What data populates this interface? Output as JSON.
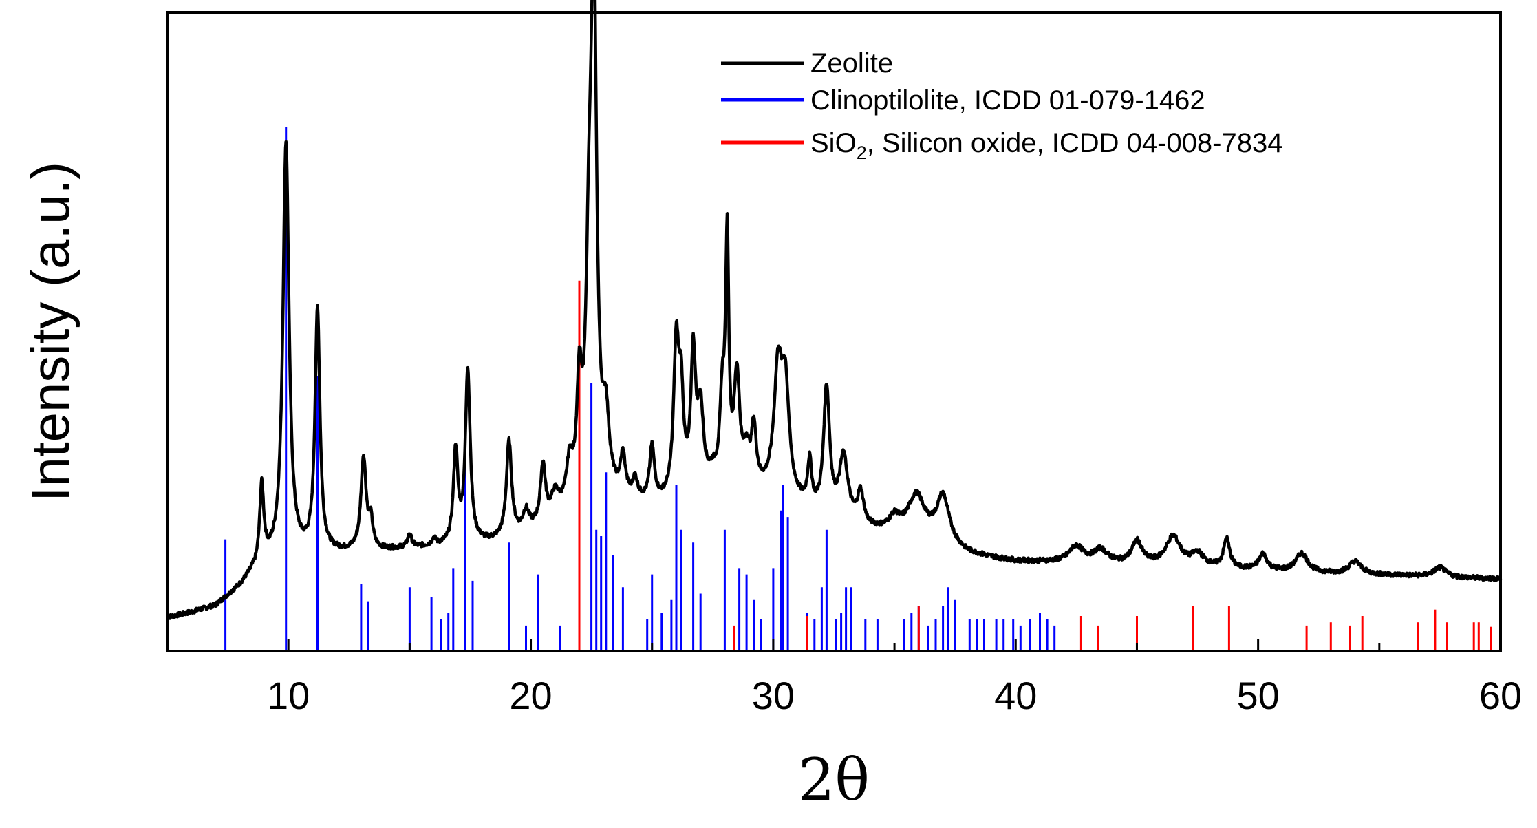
{
  "chart_data": {
    "type": "line",
    "title": "",
    "xlabel": "2θ",
    "ylabel": "Intensity (a.u.)",
    "xlim": [
      5,
      60
    ],
    "ylim": [
      0,
      100
    ],
    "xticks": [
      10,
      20,
      30,
      40,
      50,
      60
    ],
    "xtick_labels": [
      "10",
      "20",
      "30",
      "40",
      "50",
      "60"
    ],
    "legend_position": "top-right",
    "legend": [
      {
        "label": "Zeolite",
        "color": "#000000"
      },
      {
        "label": "Clinoptilolite, ICDD 01-079-1462",
        "color": "#0000ff"
      },
      {
        "label_main": "SiO",
        "label_sub": "2",
        "label_rest": ", Silicon oxide, ICDD 04-008-7834",
        "color": "#ff0000"
      }
    ],
    "series": [
      {
        "name": "Zeolite",
        "color": "#000000",
        "baseline": [
          [
            5,
            5.2
          ],
          [
            6,
            6.0
          ],
          [
            7,
            7.0
          ],
          [
            7.5,
            8.5
          ],
          [
            8,
            10.0
          ],
          [
            8.5,
            12.0
          ],
          [
            9,
            13.5
          ],
          [
            10,
            14.5
          ],
          [
            11,
            15.0
          ],
          [
            12,
            15.3
          ],
          [
            13,
            15.5
          ],
          [
            14,
            15.7
          ],
          [
            15,
            16.0
          ],
          [
            16,
            16.2
          ],
          [
            17,
            16.4
          ],
          [
            18,
            16.7
          ],
          [
            19,
            17.2
          ],
          [
            20,
            18.5
          ],
          [
            21,
            20.0
          ],
          [
            22,
            22.5
          ],
          [
            23,
            24.0
          ],
          [
            24,
            23.0
          ],
          [
            25,
            22.5
          ],
          [
            26,
            23.0
          ],
          [
            27,
            24.0
          ],
          [
            28,
            24.5
          ],
          [
            29,
            24.5
          ],
          [
            30,
            24.0
          ],
          [
            31,
            22.5
          ],
          [
            32,
            20.5
          ],
          [
            33,
            19.5
          ],
          [
            34,
            18.8
          ],
          [
            35,
            18.5
          ],
          [
            36,
            18.5
          ],
          [
            37,
            17.0
          ],
          [
            38,
            15.2
          ],
          [
            39,
            14.5
          ],
          [
            40,
            14.0
          ],
          [
            42,
            13.8
          ],
          [
            44,
            13.6
          ],
          [
            46,
            13.4
          ],
          [
            48,
            13.0
          ],
          [
            50,
            12.6
          ],
          [
            52,
            12.2
          ],
          [
            54,
            12.0
          ],
          [
            56,
            11.8
          ],
          [
            58,
            11.5
          ],
          [
            60,
            11.3
          ]
        ],
        "peaks": [
          [
            8.9,
            12.0,
            0.1
          ],
          [
            9.9,
            65.0,
            0.15
          ],
          [
            11.2,
            38.0,
            0.12
          ],
          [
            13.1,
            14.5,
            0.13
          ],
          [
            13.4,
            4.0,
            0.1
          ],
          [
            15.0,
            2.0,
            0.1
          ],
          [
            16.0,
            1.0,
            0.1
          ],
          [
            16.9,
            14.5,
            0.11
          ],
          [
            17.4,
            27.0,
            0.12
          ],
          [
            19.1,
            15.0,
            0.13
          ],
          [
            19.8,
            3.0,
            0.15
          ],
          [
            20.5,
            9.0,
            0.12
          ],
          [
            21.0,
            3.5,
            0.2
          ],
          [
            21.6,
            6.0,
            0.15
          ],
          [
            22.0,
            16.0,
            0.12
          ],
          [
            22.4,
            30.0,
            0.15
          ],
          [
            22.6,
            77.0,
            0.14
          ],
          [
            23.1,
            10.0,
            0.15
          ],
          [
            23.8,
            6.0,
            0.12
          ],
          [
            24.3,
            3.0,
            0.12
          ],
          [
            25.0,
            8.5,
            0.12
          ],
          [
            26.0,
            23.0,
            0.13
          ],
          [
            26.2,
            14.0,
            0.12
          ],
          [
            26.7,
            21.0,
            0.12
          ],
          [
            27.0,
            12.0,
            0.15
          ],
          [
            27.5,
            2.0,
            0.2
          ],
          [
            27.9,
            13.0,
            0.12
          ],
          [
            28.1,
            37.0,
            0.08
          ],
          [
            28.5,
            17.0,
            0.14
          ],
          [
            28.9,
            5.0,
            0.15
          ],
          [
            29.2,
            9.0,
            0.12
          ],
          [
            30.2,
            19.0,
            0.2
          ],
          [
            30.5,
            16.0,
            0.18
          ],
          [
            31.5,
            7.0,
            0.1
          ],
          [
            32.2,
            20.0,
            0.15
          ],
          [
            32.9,
            10.0,
            0.22
          ],
          [
            33.6,
            5.0,
            0.15
          ],
          [
            35.0,
            2.0,
            0.25
          ],
          [
            35.9,
            5.5,
            0.4
          ],
          [
            37.0,
            7.0,
            0.3
          ],
          [
            42.5,
            2.5,
            0.35
          ],
          [
            43.5,
            2.0,
            0.35
          ],
          [
            45.0,
            3.5,
            0.25
          ],
          [
            46.5,
            4.5,
            0.35
          ],
          [
            47.5,
            2.0,
            0.3
          ],
          [
            48.7,
            4.5,
            0.15
          ],
          [
            50.2,
            2.5,
            0.2
          ],
          [
            51.8,
            3.0,
            0.3
          ],
          [
            54.0,
            2.0,
            0.3
          ],
          [
            57.5,
            1.5,
            0.3
          ]
        ],
        "noise_amplitude": 0.7
      },
      {
        "name": "Clinoptilolite, ICDD 01-079-1462",
        "color": "#0000ff",
        "type": "stick",
        "x": [
          7.4,
          9.9,
          11.2,
          13.0,
          13.3,
          15.0,
          15.9,
          16.3,
          16.6,
          16.8,
          17.3,
          17.6,
          19.1,
          19.8,
          20.3,
          21.2,
          22.5,
          22.7,
          22.9,
          23.1,
          23.4,
          23.8,
          24.8,
          25.0,
          25.4,
          25.8,
          26.0,
          26.2,
          26.7,
          27.0,
          28.0,
          28.6,
          28.9,
          29.2,
          29.5,
          30.0,
          30.3,
          30.4,
          30.6,
          31.4,
          31.7,
          32.0,
          32.2,
          32.6,
          32.8,
          33.0,
          33.2,
          33.8,
          34.3,
          35.4,
          35.7,
          36.0,
          36.4,
          36.7,
          37.0,
          37.2,
          37.5,
          38.1,
          38.4,
          38.7,
          39.2,
          39.5,
          39.9,
          40.2,
          40.6,
          41.0,
          41.3,
          41.6
        ],
        "y": [
          17.5,
          82.0,
          43.0,
          10.5,
          7.8,
          10.0,
          8.5,
          5.0,
          6.0,
          13.0,
          33.0,
          11.0,
          17.0,
          4.0,
          12.0,
          4.0,
          42.0,
          19.0,
          18.0,
          28.0,
          15.0,
          10.0,
          5.0,
          12.0,
          6.0,
          8.0,
          26.0,
          19.0,
          17.0,
          9.0,
          19.0,
          13.0,
          12.0,
          8.0,
          5.0,
          13.0,
          22.0,
          26.0,
          21.0,
          6.0,
          5.0,
          10.0,
          19.0,
          5.0,
          6.0,
          10.0,
          10.0,
          5.0,
          5.0,
          5.0,
          6.0,
          7.0,
          4.0,
          5.0,
          7.0,
          10.0,
          8.0,
          5.0,
          5.0,
          5.0,
          5.0,
          5.0,
          5.0,
          4.0,
          5.0,
          6.0,
          5.0,
          4.0
        ]
      },
      {
        "name": "SiO2, Silicon oxide, ICDD 04-008-7834",
        "color": "#ff0000",
        "type": "stick",
        "x": [
          22.0,
          28.4,
          31.4,
          36.0,
          42.7,
          43.4,
          45.0,
          47.3,
          48.8,
          52.0,
          53.0,
          53.8,
          54.3,
          56.6,
          57.3,
          57.8,
          58.9,
          59.1,
          59.6
        ],
        "y": [
          58.0,
          4.0,
          5.5,
          7.0,
          5.5,
          4.0,
          5.5,
          7.0,
          7.0,
          4.0,
          4.5,
          4.0,
          5.5,
          4.5,
          6.5,
          4.5,
          4.5,
          4.5,
          3.8
        ]
      }
    ]
  }
}
